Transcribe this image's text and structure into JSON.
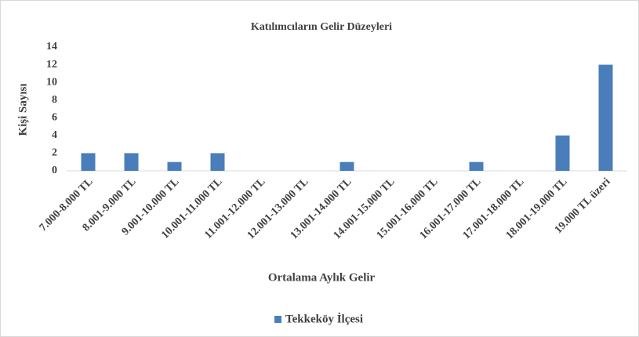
{
  "chart_data": {
    "type": "bar",
    "title": "Katılımcıların Gelir Düzeyleri",
    "x_label": "Ortalama Aylık Gelir",
    "y_label": "Kişi Sayısı",
    "categories": [
      "7.000-8.000 TL",
      "8.001-9.000 TL",
      "9.001-10.000 TL",
      "10.001-11.000 TL",
      "11.001-12.000 TL",
      "12.001-13.000 TL",
      "13.001-14.000 TL",
      "14.001-15.000 TL",
      "15.001-16.000 TL",
      "16.001-17.000 TL",
      "17.001-18.000 TL",
      "18.001-19.000 TL",
      "19.000 TL üzeri"
    ],
    "series": [
      {
        "name": "Tekkeköy İlçesi",
        "color": "#4a7ebb",
        "values": [
          2,
          2,
          1,
          2,
          0,
          0,
          1,
          0,
          0,
          1,
          0,
          4,
          12
        ]
      }
    ],
    "ylim": [
      0,
      14
    ],
    "yticks": [
      0,
      2,
      4,
      6,
      8,
      10,
      12,
      14
    ],
    "grid": false,
    "legend": "bottom"
  }
}
